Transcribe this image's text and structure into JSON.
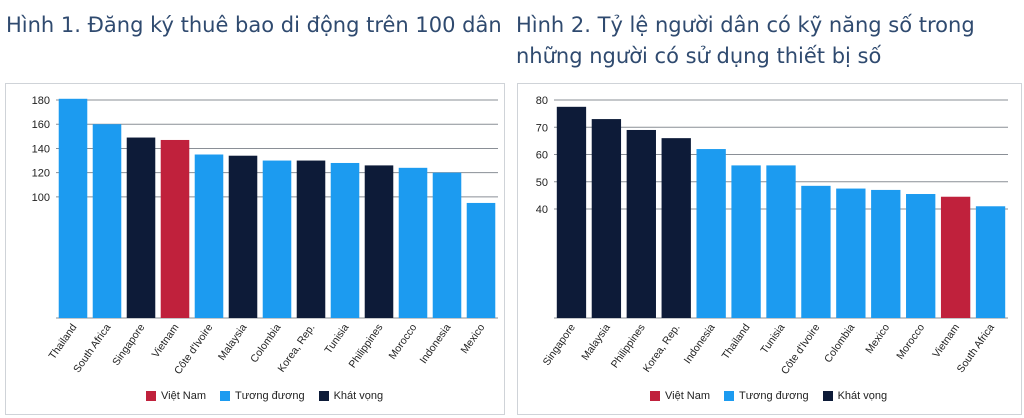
{
  "colors": {
    "vietnam": "#c0213c",
    "comparable": "#1c9bf0",
    "aspirational": "#0d1b38"
  },
  "legend": {
    "vietnam": "Việt Nam",
    "comparable": "Tương đương",
    "aspirational": "Khát vọng"
  },
  "chart_data": [
    {
      "type": "bar",
      "title": "Hình 1. Đăng ký thuê bao di động trên 100 dân",
      "categories": [
        "Thailand",
        "South Africa",
        "Singapore",
        "Vietnam",
        "Côte d'Ivoire",
        "Malaysia",
        "Colombia",
        "Korea, Rep.",
        "Tunisia",
        "Philippines",
        "Morocco",
        "Indonesia",
        "Mexico"
      ],
      "values": [
        181,
        160,
        149,
        147,
        135,
        134,
        130,
        130,
        128,
        126,
        124,
        120,
        95
      ],
      "groups": [
        "comparable",
        "comparable",
        "aspirational",
        "vietnam",
        "comparable",
        "aspirational",
        "comparable",
        "aspirational",
        "comparable",
        "aspirational",
        "comparable",
        "comparable",
        "comparable"
      ],
      "yticks": [
        100,
        120,
        140,
        160,
        180
      ],
      "ylim": [
        0,
        180
      ],
      "grid": true,
      "legend_position": "bottom"
    },
    {
      "type": "bar",
      "title": "Hình 2. Tỷ lệ người dân có kỹ năng số trong những người có sử dụng thiết bị số",
      "categories": [
        "Singapore",
        "Malaysia",
        "Philippines",
        "Korea, Rep.",
        "Indonesia",
        "Thailand",
        "Tunisia",
        "Côte d'Ivoire",
        "Colombia",
        "Mexico",
        "Morocco",
        "Vietnam",
        "South Africa"
      ],
      "values": [
        77.5,
        73,
        69,
        66,
        62,
        56,
        56,
        48.5,
        47.5,
        47,
        45.5,
        44.5,
        41
      ],
      "groups": [
        "aspirational",
        "aspirational",
        "aspirational",
        "aspirational",
        "comparable",
        "comparable",
        "comparable",
        "comparable",
        "comparable",
        "comparable",
        "comparable",
        "vietnam",
        "comparable"
      ],
      "yticks": [
        40,
        50,
        60,
        70,
        80
      ],
      "ylim": [
        0,
        80
      ],
      "grid": true,
      "legend_position": "bottom"
    }
  ]
}
